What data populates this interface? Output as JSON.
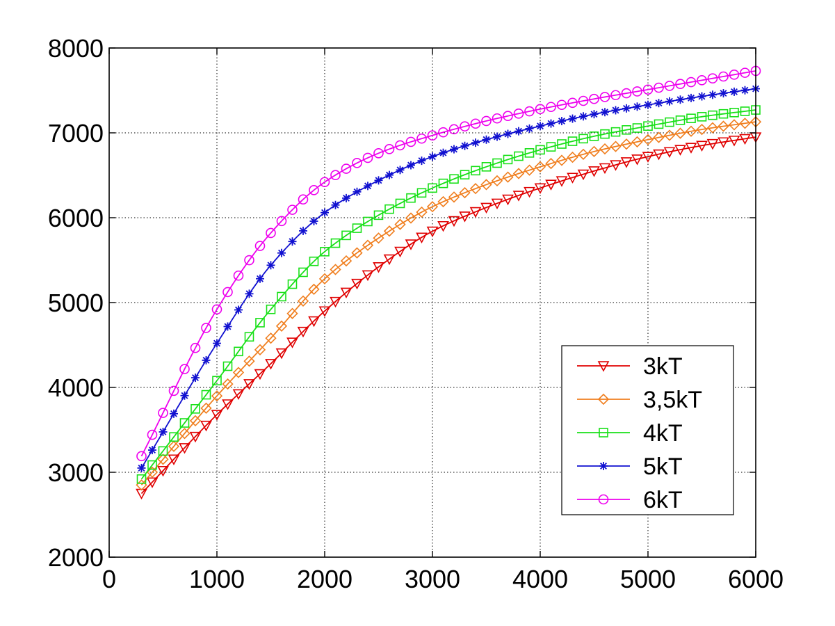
{
  "chart_data": {
    "type": "line",
    "title": "",
    "xlabel": "",
    "ylabel": "",
    "xlim": [
      0,
      6000
    ],
    "ylim": [
      2000,
      8000
    ],
    "xticks": [
      "0",
      "1000",
      "2000",
      "3000",
      "4000",
      "5000",
      "6000"
    ],
    "yticks": [
      "2000",
      "3000",
      "4000",
      "5000",
      "6000",
      "7000",
      "8000"
    ],
    "grid": true,
    "legend_position": "lower-right",
    "x": [
      300,
      1000,
      1500,
      2000,
      2500,
      3000,
      3500,
      4000,
      4500,
      5000,
      5500,
      6000
    ],
    "series": [
      {
        "name": "3kT",
        "color": "#e00000",
        "marker": "triangle-down",
        "values": [
          2750,
          3680,
          4280,
          4900,
          5420,
          5840,
          6120,
          6350,
          6550,
          6720,
          6850,
          6950
        ]
      },
      {
        "name": "3,5kT",
        "color": "#f07e1e",
        "marker": "diamond",
        "values": [
          2850,
          3900,
          4580,
          5280,
          5760,
          6130,
          6390,
          6600,
          6780,
          6920,
          7040,
          7130
        ]
      },
      {
        "name": "4kT",
        "color": "#18e018",
        "marker": "square",
        "values": [
          2920,
          4080,
          4920,
          5600,
          6030,
          6350,
          6600,
          6800,
          6960,
          7080,
          7190,
          7270
        ]
      },
      {
        "name": "5kT",
        "color": "#1010d0",
        "marker": "asterisk",
        "values": [
          3050,
          4520,
          5440,
          6060,
          6440,
          6720,
          6920,
          7080,
          7220,
          7330,
          7430,
          7520
        ]
      },
      {
        "name": "6kT",
        "color": "#ee00ee",
        "marker": "circle",
        "values": [
          3190,
          4920,
          5820,
          6420,
          6760,
          6970,
          7140,
          7280,
          7400,
          7510,
          7620,
          7730
        ]
      }
    ]
  }
}
